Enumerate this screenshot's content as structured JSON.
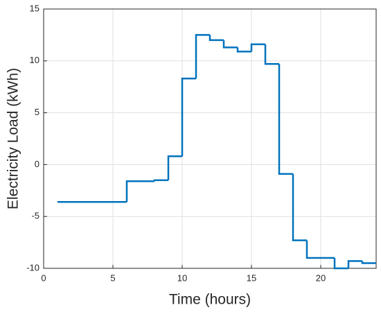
{
  "chart_data": {
    "type": "stairs",
    "x_label": "Time (hours)",
    "y_label": "Electricity Load (kWh)",
    "x": [
      1,
      2,
      3,
      4,
      5,
      6,
      7,
      8,
      9,
      10,
      11,
      12,
      13,
      14,
      15,
      16,
      17,
      18,
      19,
      20,
      21,
      22,
      23,
      24
    ],
    "values": [
      -3.6,
      -3.6,
      -3.6,
      -3.6,
      -3.6,
      -1.6,
      -1.6,
      -1.5,
      0.8,
      8.3,
      12.5,
      12.0,
      11.3,
      10.9,
      11.6,
      9.7,
      -0.9,
      -7.3,
      -9.0,
      -9.0,
      -10,
      -9.3,
      -9.5,
      -9.5
    ],
    "color": "#0072bd",
    "xlim": [
      0,
      24
    ],
    "xticks": [
      0,
      5,
      10,
      15,
      20
    ],
    "ylim": [
      -10,
      15
    ],
    "yticks": [
      -10,
      -5,
      0,
      5,
      10,
      15
    ],
    "grid": true
  }
}
